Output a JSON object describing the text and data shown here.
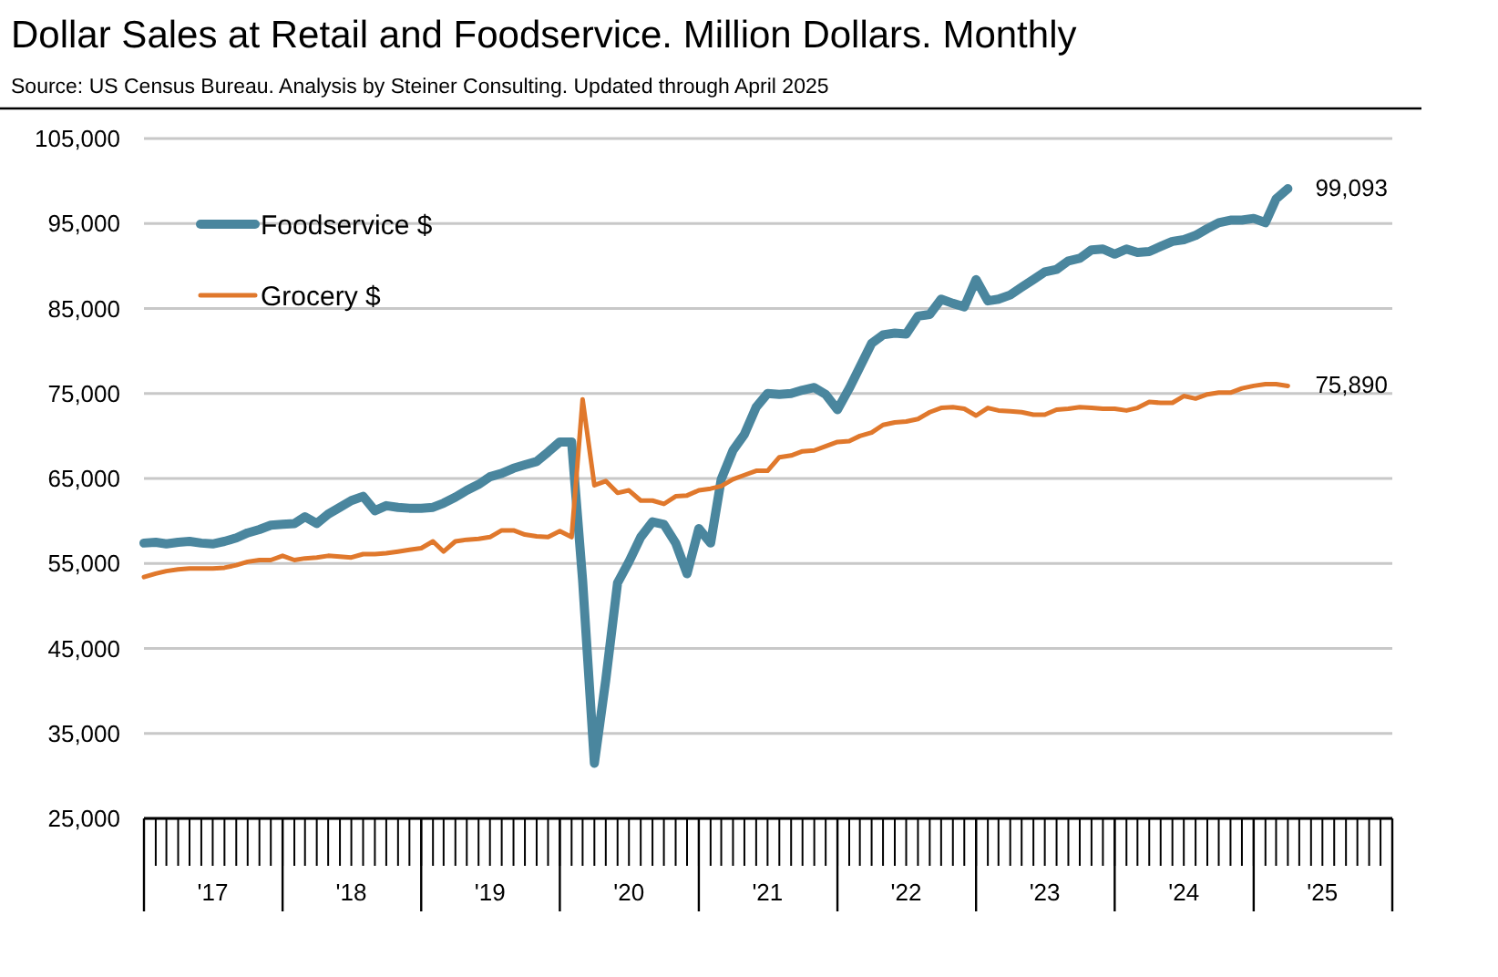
{
  "chart_data": {
    "type": "line",
    "title": "Dollar Sales at Retail and Foodservice. Million Dollars.  Monthly",
    "subtitle": "Source:  US Census Bureau.  Analysis by Steiner Consulting. Updated through April 2025",
    "x": [
      "2017-01",
      "2017-02",
      "2017-03",
      "2017-04",
      "2017-05",
      "2017-06",
      "2017-07",
      "2017-08",
      "2017-09",
      "2017-10",
      "2017-11",
      "2017-12",
      "2018-01",
      "2018-02",
      "2018-03",
      "2018-04",
      "2018-05",
      "2018-06",
      "2018-07",
      "2018-08",
      "2018-09",
      "2018-10",
      "2018-11",
      "2018-12",
      "2019-01",
      "2019-02",
      "2019-03",
      "2019-04",
      "2019-05",
      "2019-06",
      "2019-07",
      "2019-08",
      "2019-09",
      "2019-10",
      "2019-11",
      "2019-12",
      "2020-01",
      "2020-02",
      "2020-03",
      "2020-04",
      "2020-05",
      "2020-06",
      "2020-07",
      "2020-08",
      "2020-09",
      "2020-10",
      "2020-11",
      "2020-12",
      "2021-01",
      "2021-02",
      "2021-03",
      "2021-04",
      "2021-05",
      "2021-06",
      "2021-07",
      "2021-08",
      "2021-09",
      "2021-10",
      "2021-11",
      "2021-12",
      "2022-01",
      "2022-02",
      "2022-03",
      "2022-04",
      "2022-05",
      "2022-06",
      "2022-07",
      "2022-08",
      "2022-09",
      "2022-10",
      "2022-11",
      "2022-12",
      "2023-01",
      "2023-02",
      "2023-03",
      "2023-04",
      "2023-05",
      "2023-06",
      "2023-07",
      "2023-08",
      "2023-09",
      "2023-10",
      "2023-11",
      "2023-12",
      "2024-01",
      "2024-02",
      "2024-03",
      "2024-04",
      "2024-05",
      "2024-06",
      "2024-07",
      "2024-08",
      "2024-09",
      "2024-10",
      "2024-11",
      "2024-12",
      "2025-01",
      "2025-02",
      "2025-03",
      "2025-04"
    ],
    "series": [
      {
        "name": "Foodservice $",
        "color": "#4a869e",
        "values": [
          57400,
          57500,
          57300,
          57500,
          57600,
          57400,
          57300,
          57600,
          58000,
          58600,
          59000,
          59500,
          59600,
          59700,
          60500,
          59700,
          60800,
          61600,
          62400,
          62900,
          61200,
          61800,
          61600,
          61500,
          61500,
          61600,
          62100,
          62800,
          63600,
          64300,
          65200,
          65600,
          66200,
          66600,
          67000,
          68100,
          69300,
          69300,
          53000,
          31500,
          41300,
          52700,
          55200,
          58100,
          59900,
          59600,
          57400,
          53800,
          59100,
          57400,
          64900,
          68300,
          70200,
          73400,
          75000,
          74900,
          75000,
          75400,
          75700,
          74900,
          73100,
          75600,
          78100,
          80900,
          81900,
          82100,
          82000,
          84100,
          84300,
          86100,
          85600,
          85200,
          88400,
          85900,
          86100,
          86600,
          87500,
          88400,
          89300,
          89600,
          90600,
          90900,
          91900,
          92000,
          91400,
          92000,
          91600,
          91700,
          92300,
          92900,
          93100,
          93600,
          94400,
          95100,
          95400,
          95400,
          95600,
          95100,
          97900,
          99093
        ],
        "value_labels": [
          null,
          null,
          null,
          null,
          null,
          null,
          null,
          null,
          null,
          null,
          null,
          null,
          null,
          null,
          null,
          null,
          null,
          null,
          null,
          null,
          null,
          null,
          null,
          null,
          null,
          null,
          null,
          null,
          null,
          null,
          null,
          null,
          null,
          null,
          null,
          null,
          null,
          null,
          null,
          null,
          null,
          null,
          null,
          null,
          null,
          null,
          null,
          null,
          null,
          null,
          null,
          null,
          null,
          null,
          null,
          null,
          null,
          null,
          null,
          null,
          null,
          null,
          null,
          null,
          null,
          null,
          null,
          null,
          null,
          null,
          null,
          null,
          null,
          null,
          null,
          null,
          null,
          null,
          null,
          null,
          null,
          null,
          null,
          null,
          null,
          null,
          null,
          null,
          null,
          null,
          null,
          null,
          null,
          null,
          null,
          null,
          null,
          null,
          null,
          "99,093"
        ]
      },
      {
        "name": "Grocery $",
        "color": "#e0782c",
        "values": [
          53400,
          53800,
          54100,
          54300,
          54400,
          54400,
          54400,
          54500,
          54800,
          55200,
          55400,
          55400,
          55900,
          55400,
          55600,
          55700,
          55900,
          55800,
          55700,
          56100,
          56100,
          56200,
          56400,
          56600,
          56800,
          57600,
          56400,
          57600,
          57800,
          57900,
          58100,
          58900,
          58900,
          58400,
          58200,
          58100,
          58800,
          58100,
          74300,
          64200,
          64700,
          63300,
          63600,
          62400,
          62400,
          62000,
          62900,
          63000,
          63600,
          63800,
          64100,
          64900,
          65400,
          65900,
          65900,
          67500,
          67700,
          68200,
          68300,
          68800,
          69300,
          69400,
          70000,
          70400,
          71300,
          71600,
          71700,
          72000,
          72800,
          73300,
          73400,
          73200,
          72400,
          73300,
          73000,
          72900,
          72800,
          72500,
          72500,
          73100,
          73200,
          73400,
          73300,
          73200,
          73200,
          73000,
          73300,
          74000,
          73900,
          73900,
          74700,
          74400,
          74900,
          75100,
          75100,
          75600,
          75900,
          76100,
          76100,
          75890
        ],
        "value_labels": [
          null,
          null,
          null,
          null,
          null,
          null,
          null,
          null,
          null,
          null,
          null,
          null,
          null,
          null,
          null,
          null,
          null,
          null,
          null,
          null,
          null,
          null,
          null,
          null,
          null,
          null,
          null,
          null,
          null,
          null,
          null,
          null,
          null,
          null,
          null,
          null,
          null,
          null,
          null,
          null,
          null,
          null,
          null,
          null,
          null,
          null,
          null,
          null,
          null,
          null,
          null,
          null,
          null,
          null,
          null,
          null,
          null,
          null,
          null,
          null,
          null,
          null,
          null,
          null,
          null,
          null,
          null,
          null,
          null,
          null,
          null,
          null,
          null,
          null,
          null,
          null,
          null,
          null,
          null,
          null,
          null,
          null,
          null,
          null,
          null,
          null,
          null,
          null,
          null,
          null,
          null,
          null,
          null,
          null,
          null,
          null,
          null,
          null,
          null,
          "75,890"
        ]
      }
    ],
    "xlim": [
      "2017-01",
      "2026-01"
    ],
    "xticks": [
      {
        "value": "2017-07",
        "label": "'17"
      },
      {
        "value": "2018-07",
        "label": "'18"
      },
      {
        "value": "2019-07",
        "label": "'19"
      },
      {
        "value": "2020-07",
        "label": "'20"
      },
      {
        "value": "2021-07",
        "label": "'21"
      },
      {
        "value": "2022-07",
        "label": "'22"
      },
      {
        "value": "2023-07",
        "label": "'23"
      },
      {
        "value": "2024-07",
        "label": "'24"
      },
      {
        "value": "2025-07",
        "label": "'25"
      }
    ],
    "ylim": [
      25000,
      105000
    ],
    "yticks": [
      {
        "value": 25000,
        "label": "25,000"
      },
      {
        "value": 35000,
        "label": "35,000"
      },
      {
        "value": 45000,
        "label": "45,000"
      },
      {
        "value": 55000,
        "label": "55,000"
      },
      {
        "value": 65000,
        "label": "65,000"
      },
      {
        "value": 75000,
        "label": "75,000"
      },
      {
        "value": 85000,
        "label": "85,000"
      },
      {
        "value": 95000,
        "label": "95,000"
      },
      {
        "value": 105000,
        "label": "105,000"
      }
    ],
    "grid": "y",
    "legend": "top left",
    "marker": "none",
    "line_style": "solid"
  }
}
